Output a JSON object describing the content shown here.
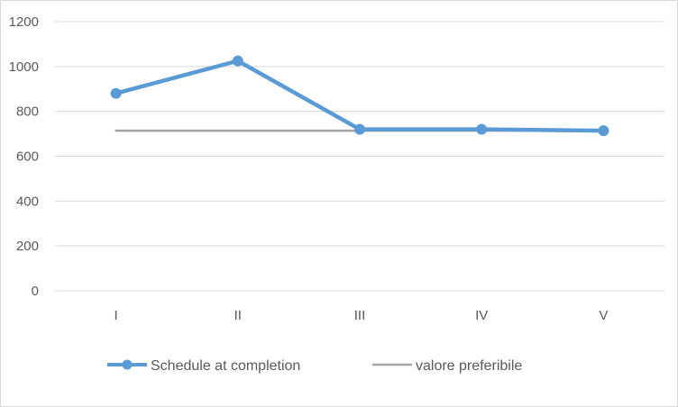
{
  "chart_data": {
    "type": "line",
    "title": "",
    "xlabel": "",
    "ylabel": "",
    "categories": [
      "I",
      "II",
      "III",
      "IV",
      "V"
    ],
    "ylim": [
      0,
      1200
    ],
    "yticks": [
      0,
      200,
      400,
      600,
      800,
      1000,
      1200
    ],
    "grid": true,
    "legend_position": "bottom",
    "series": [
      {
        "name": "Schedule at completion",
        "values": [
          880,
          1025,
          720,
          720,
          714
        ],
        "color": "#5B9BD5",
        "markers": true
      },
      {
        "name": "valore preferibile",
        "values": [
          714,
          714,
          714,
          714,
          714
        ],
        "color": "#A5A5A5",
        "markers": false
      }
    ]
  }
}
